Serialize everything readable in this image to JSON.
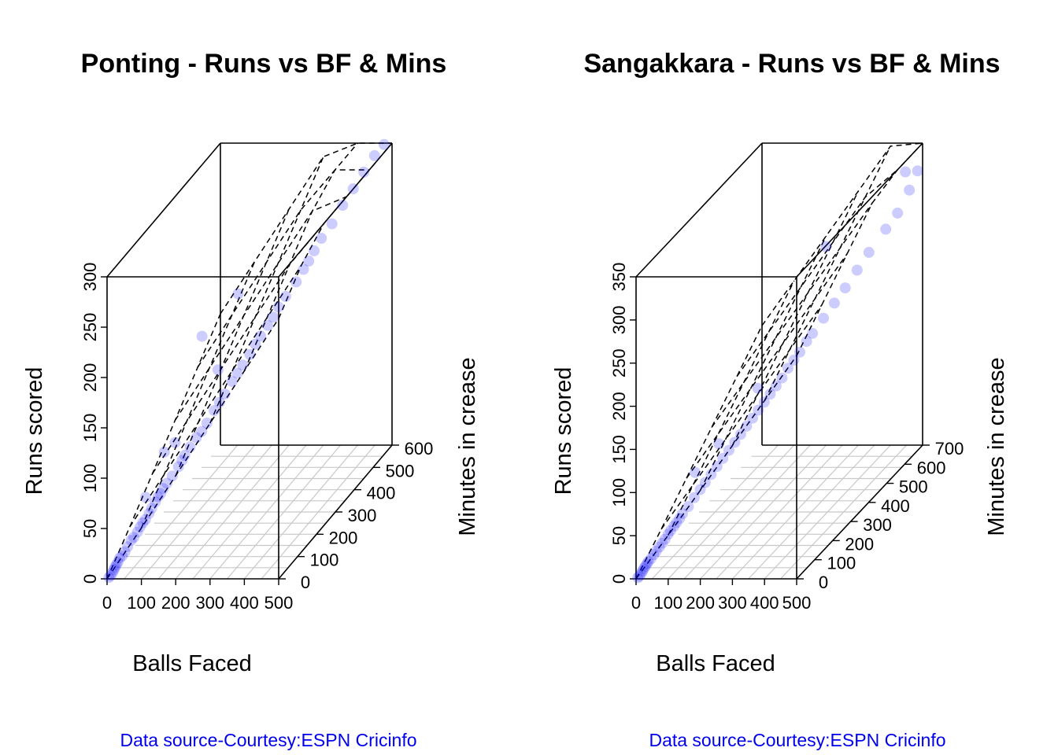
{
  "chart_data": [
    {
      "type": "scatter",
      "title": "Ponting - Runs  vs BF & Mins",
      "xlabel": "Balls Faced",
      "ylabel": "Minutes in crease",
      "zlabel": "Runs scored",
      "xticks": [
        "0",
        "100",
        "200",
        "300",
        "400",
        "500"
      ],
      "yticks": [
        "0",
        "100",
        "200",
        "300",
        "400",
        "500",
        "600"
      ],
      "zticks": [
        "0",
        "50",
        "100",
        "150",
        "200",
        "250",
        "300"
      ],
      "xlim": [
        0,
        500
      ],
      "ylim": [
        0,
        600
      ],
      "zlim": [
        0,
        300
      ],
      "regression_plane": {
        "intercept": -1.5,
        "bf_coef": 0.52,
        "mins_coef": 0.22
      },
      "caption": "Data source-Courtesy:ESPN Cricinfo",
      "points": [
        [
          2,
          6,
          0
        ],
        [
          5,
          10,
          1
        ],
        [
          8,
          14,
          3
        ],
        [
          10,
          18,
          5
        ],
        [
          12,
          20,
          7
        ],
        [
          15,
          22,
          9
        ],
        [
          18,
          25,
          11
        ],
        [
          20,
          30,
          14
        ],
        [
          25,
          35,
          15
        ],
        [
          30,
          40,
          18
        ],
        [
          35,
          45,
          22
        ],
        [
          40,
          55,
          26
        ],
        [
          45,
          60,
          28
        ],
        [
          50,
          70,
          31
        ],
        [
          55,
          75,
          35
        ],
        [
          60,
          80,
          38
        ],
        [
          65,
          85,
          40
        ],
        [
          70,
          95,
          44
        ],
        [
          75,
          100,
          48
        ],
        [
          80,
          110,
          52
        ],
        [
          85,
          115,
          56
        ],
        [
          90,
          120,
          58
        ],
        [
          95,
          125,
          62
        ],
        [
          100,
          135,
          65
        ],
        [
          110,
          145,
          70
        ],
        [
          120,
          160,
          76
        ],
        [
          125,
          170,
          80
        ],
        [
          130,
          175,
          84
        ],
        [
          140,
          185,
          90
        ],
        [
          150,
          200,
          96
        ],
        [
          160,
          210,
          100
        ],
        [
          170,
          220,
          106
        ],
        [
          180,
          240,
          114
        ],
        [
          190,
          250,
          120
        ],
        [
          200,
          260,
          126
        ],
        [
          210,
          280,
          134
        ],
        [
          220,
          290,
          140
        ],
        [
          230,
          300,
          146
        ],
        [
          240,
          320,
          152
        ],
        [
          250,
          330,
          160
        ],
        [
          260,
          340,
          166
        ],
        [
          270,
          360,
          172
        ],
        [
          280,
          370,
          178
        ],
        [
          290,
          380,
          186
        ],
        [
          300,
          400,
          192
        ],
        [
          320,
          420,
          202
        ],
        [
          330,
          440,
          210
        ],
        [
          340,
          450,
          216
        ],
        [
          350,
          460,
          224
        ],
        [
          360,
          480,
          232
        ],
        [
          380,
          500,
          242
        ],
        [
          400,
          520,
          256
        ],
        [
          420,
          540,
          268
        ],
        [
          440,
          560,
          280
        ],
        [
          460,
          580,
          292
        ],
        [
          478,
          598,
          299
        ],
        [
          150,
          230,
          190
        ],
        [
          200,
          330,
          210
        ],
        [
          60,
          95,
          60
        ],
        [
          90,
          140,
          95
        ],
        [
          110,
          160,
          100
        ],
        [
          180,
          260,
          150
        ]
      ]
    },
    {
      "type": "scatter",
      "title": "Sangakkara - Runs  vs BF & Mins",
      "xlabel": "Balls Faced",
      "ylabel": "Minutes in crease",
      "zlabel": "Runs scored",
      "xticks": [
        "0",
        "100",
        "200",
        "300",
        "400",
        "500"
      ],
      "yticks": [
        "0",
        "100",
        "200",
        "300",
        "400",
        "500",
        "600",
        "700"
      ],
      "zticks": [
        "0",
        "50",
        "100",
        "150",
        "200",
        "250",
        "300",
        "350"
      ],
      "xlim": [
        0,
        500
      ],
      "ylim": [
        0,
        700
      ],
      "zlim": [
        0,
        350
      ],
      "regression_plane": {
        "intercept": -1.5,
        "bf_coef": 0.52,
        "mins_coef": 0.2
      },
      "caption": "Data source-Courtesy:ESPN Cricinfo",
      "points": [
        [
          2,
          6,
          0
        ],
        [
          5,
          10,
          1
        ],
        [
          8,
          14,
          3
        ],
        [
          10,
          18,
          5
        ],
        [
          12,
          22,
          7
        ],
        [
          15,
          25,
          9
        ],
        [
          18,
          28,
          11
        ],
        [
          20,
          32,
          13
        ],
        [
          25,
          38,
          15
        ],
        [
          30,
          45,
          18
        ],
        [
          35,
          50,
          21
        ],
        [
          40,
          58,
          24
        ],
        [
          45,
          65,
          27
        ],
        [
          50,
          72,
          30
        ],
        [
          55,
          80,
          34
        ],
        [
          60,
          85,
          37
        ],
        [
          65,
          95,
          40
        ],
        [
          70,
          100,
          43
        ],
        [
          75,
          108,
          46
        ],
        [
          80,
          115,
          50
        ],
        [
          90,
          130,
          55
        ],
        [
          100,
          145,
          62
        ],
        [
          110,
          160,
          68
        ],
        [
          120,
          170,
          74
        ],
        [
          130,
          185,
          80
        ],
        [
          140,
          200,
          86
        ],
        [
          150,
          215,
          92
        ],
        [
          160,
          230,
          98
        ],
        [
          170,
          245,
          104
        ],
        [
          180,
          260,
          110
        ],
        [
          190,
          275,
          116
        ],
        [
          200,
          290,
          122
        ],
        [
          210,
          305,
          128
        ],
        [
          220,
          320,
          134
        ],
        [
          230,
          335,
          140
        ],
        [
          240,
          350,
          146
        ],
        [
          250,
          365,
          152
        ],
        [
          260,
          380,
          160
        ],
        [
          270,
          395,
          166
        ],
        [
          280,
          410,
          172
        ],
        [
          290,
          430,
          180
        ],
        [
          300,
          445,
          186
        ],
        [
          320,
          470,
          198
        ],
        [
          340,
          495,
          210
        ],
        [
          360,
          520,
          222
        ],
        [
          380,
          550,
          236
        ],
        [
          400,
          580,
          250
        ],
        [
          430,
          620,
          268
        ],
        [
          450,
          650,
          280
        ],
        [
          470,
          680,
          300
        ],
        [
          490,
          690,
          320
        ],
        [
          480,
          640,
          330
        ],
        [
          300,
          520,
          270
        ],
        [
          100,
          150,
          90
        ],
        [
          200,
          320,
          150
        ],
        [
          140,
          210,
          110
        ]
      ]
    }
  ]
}
